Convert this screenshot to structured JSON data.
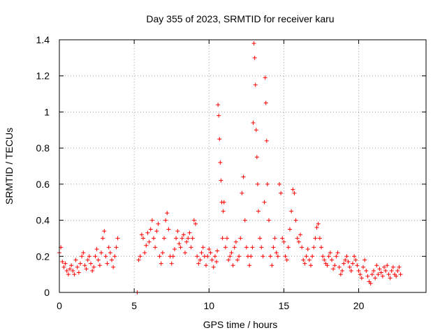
{
  "chart_data": {
    "type": "scatter",
    "title": "Day 355 of 2023, SRMTID for receiver karu",
    "xlabel": "GPS time / hours",
    "ylabel": "SRMTID / TECUs",
    "xlim": [
      0,
      24.5
    ],
    "ylim": [
      0,
      1.4
    ],
    "x_ticks": [
      0,
      5,
      10,
      15,
      20
    ],
    "y_ticks": [
      0,
      0.2,
      0.4,
      0.6,
      0.8,
      1,
      1.2,
      1.4
    ],
    "x_tick_labels": [
      "0",
      "5",
      "10",
      "15",
      "20"
    ],
    "y_tick_labels": [
      "0",
      "0.2",
      "0.4",
      "0.6",
      "0.8",
      "1",
      "1.2",
      "1.4"
    ],
    "grid": true,
    "marker": "plus",
    "color": "#ff0000",
    "series": [
      {
        "name": "SRMTID",
        "x": [
          0.0,
          0.1,
          0.2,
          0.3,
          0.4,
          0.5,
          0.6,
          0.7,
          0.8,
          0.9,
          1.0,
          1.1,
          1.2,
          1.3,
          1.4,
          1.5,
          1.6,
          1.7,
          1.8,
          1.9,
          2.0,
          2.1,
          2.2,
          2.3,
          2.4,
          2.5,
          2.6,
          2.7,
          2.8,
          2.9,
          3.0,
          3.1,
          3.2,
          3.3,
          3.4,
          3.5,
          3.6,
          3.7,
          3.8,
          3.9,
          5.2,
          5.3,
          5.4,
          5.5,
          5.6,
          5.7,
          5.8,
          5.9,
          6.0,
          6.1,
          6.2,
          6.3,
          6.4,
          6.5,
          6.6,
          6.7,
          6.8,
          6.9,
          7.0,
          7.1,
          7.2,
          7.3,
          7.4,
          7.5,
          7.6,
          7.7,
          7.8,
          7.9,
          8.0,
          8.1,
          8.2,
          8.3,
          8.4,
          8.5,
          8.6,
          8.7,
          8.8,
          8.9,
          9.0,
          9.1,
          9.2,
          9.3,
          9.4,
          9.5,
          9.6,
          9.7,
          9.8,
          9.9,
          10.0,
          10.1,
          10.2,
          10.3,
          10.4,
          10.5,
          10.55,
          10.6,
          10.65,
          10.7,
          10.75,
          10.8,
          10.85,
          10.9,
          10.95,
          11.0,
          11.1,
          11.2,
          11.3,
          11.4,
          11.5,
          11.6,
          11.7,
          11.8,
          11.9,
          12.0,
          12.1,
          12.2,
          12.3,
          12.4,
          12.5,
          12.6,
          12.7,
          12.8,
          12.9,
          12.95,
          13.0,
          13.05,
          13.1,
          13.15,
          13.2,
          13.25,
          13.3,
          13.4,
          13.5,
          13.6,
          13.7,
          13.75,
          13.8,
          13.85,
          13.9,
          14.0,
          14.1,
          14.2,
          14.3,
          14.4,
          14.5,
          14.6,
          14.7,
          14.8,
          14.9,
          15.0,
          15.1,
          15.2,
          15.3,
          15.4,
          15.5,
          15.6,
          15.7,
          15.8,
          15.9,
          16.0,
          16.1,
          16.2,
          16.3,
          16.4,
          16.5,
          16.6,
          16.7,
          16.8,
          16.9,
          17.0,
          17.1,
          17.2,
          17.3,
          17.4,
          17.5,
          17.6,
          17.7,
          17.8,
          17.9,
          18.0,
          18.1,
          18.2,
          18.3,
          18.4,
          18.5,
          18.6,
          18.7,
          18.8,
          18.9,
          19.0,
          19.1,
          19.2,
          19.3,
          19.4,
          19.5,
          19.6,
          19.7,
          19.8,
          19.9,
          20.0,
          20.1,
          20.2,
          20.3,
          20.4,
          20.5,
          20.6,
          20.7,
          20.8,
          20.9,
          21.0,
          21.1,
          21.2,
          21.3,
          21.4,
          21.5,
          21.6,
          21.7,
          21.8,
          21.9,
          22.0,
          22.1,
          22.2,
          22.3,
          22.4,
          22.5,
          22.6,
          22.7,
          22.8
        ],
        "y": [
          0.22,
          0.25,
          0.17,
          0.14,
          0.16,
          0.12,
          0.1,
          0.13,
          0.15,
          0.12,
          0.1,
          0.18,
          0.14,
          0.11,
          0.16,
          0.2,
          0.22,
          0.15,
          0.13,
          0.18,
          0.2,
          0.16,
          0.12,
          0.14,
          0.2,
          0.24,
          0.18,
          0.15,
          0.22,
          0.3,
          0.34,
          0.2,
          0.16,
          0.25,
          0.22,
          0.18,
          0.14,
          0.2,
          0.25,
          0.3,
          0.0,
          0.18,
          0.2,
          0.32,
          0.3,
          0.22,
          0.26,
          0.33,
          0.28,
          0.35,
          0.4,
          0.3,
          0.25,
          0.34,
          0.38,
          0.2,
          0.16,
          0.22,
          0.3,
          0.4,
          0.44,
          0.35,
          0.2,
          0.16,
          0.2,
          0.24,
          0.3,
          0.34,
          0.27,
          0.25,
          0.3,
          0.32,
          0.22,
          0.28,
          0.3,
          0.33,
          0.25,
          0.3,
          0.4,
          0.38,
          0.2,
          0.16,
          0.18,
          0.22,
          0.25,
          0.2,
          0.15,
          0.2,
          0.24,
          0.22,
          0.18,
          0.14,
          0.2,
          0.17,
          0.23,
          1.04,
          0.98,
          0.85,
          0.72,
          0.62,
          0.5,
          0.3,
          0.45,
          0.5,
          0.25,
          0.3,
          0.18,
          0.2,
          0.22,
          0.15,
          0.25,
          0.28,
          0.18,
          0.2,
          0.3,
          0.55,
          0.64,
          0.4,
          0.25,
          0.2,
          0.15,
          0.2,
          0.25,
          0.94,
          1.38,
          1.3,
          1.15,
          0.9,
          0.75,
          0.6,
          0.45,
          0.3,
          0.25,
          0.2,
          0.5,
          1.19,
          1.05,
          0.84,
          0.6,
          0.4,
          0.2,
          0.15,
          0.25,
          0.3,
          0.22,
          0.2,
          0.6,
          0.55,
          0.3,
          0.28,
          0.2,
          0.18,
          0.25,
          0.35,
          0.45,
          0.57,
          0.55,
          0.4,
          0.3,
          0.28,
          0.32,
          0.25,
          0.18,
          0.16,
          0.2,
          0.24,
          0.18,
          0.15,
          0.2,
          0.25,
          0.3,
          0.36,
          0.38,
          0.3,
          0.25,
          0.2,
          0.18,
          0.16,
          0.15,
          0.2,
          0.22,
          0.18,
          0.13,
          0.15,
          0.2,
          0.22,
          0.14,
          0.1,
          0.12,
          0.16,
          0.18,
          0.2,
          0.17,
          0.14,
          0.12,
          0.16,
          0.2,
          0.18,
          0.15,
          0.12,
          0.1,
          0.08,
          0.14,
          0.18,
          0.12,
          0.09,
          0.06,
          0.05,
          0.1,
          0.12,
          0.08,
          0.15,
          0.1,
          0.13,
          0.11,
          0.09,
          0.14,
          0.12,
          0.15,
          0.1,
          0.08,
          0.12,
          0.14,
          0.1,
          0.09,
          0.12,
          0.14,
          0.1
        ]
      }
    ]
  }
}
